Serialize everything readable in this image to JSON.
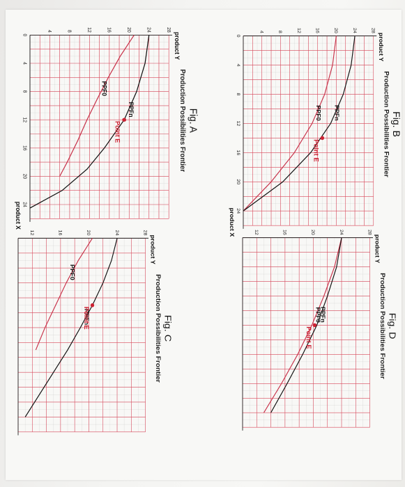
{
  "colors": {
    "grid_red": "#d9475a",
    "grid_gray": "#9a9a9a",
    "curve_black": "#111111",
    "curve_red": "#c8324a",
    "point": "#cc2233"
  },
  "chart_data": [
    {
      "type": "line",
      "figure_label": "Fig. A",
      "title": "Production Possibilities Frontier",
      "xlabel": "product X",
      "ylabel": "product Y",
      "xlim": [
        0,
        26
      ],
      "ylim": [
        0,
        28
      ],
      "x_ticks": [
        0,
        4,
        8,
        12,
        16,
        20,
        24
      ],
      "y_ticks": [
        4,
        8,
        12,
        16,
        20,
        24,
        28
      ],
      "series": [
        {
          "name": "PPF0",
          "color": "red",
          "x": [
            0,
            3,
            6,
            9,
            12,
            15,
            18,
            20
          ],
          "y": [
            21,
            18.2,
            15.8,
            13.6,
            11.5,
            9.6,
            7.5,
            6
          ]
        },
        {
          "name": "PPFn",
          "color": "black",
          "x": [
            0,
            4,
            8,
            12,
            16,
            19,
            22,
            24.5
          ],
          "y": [
            24,
            23.2,
            21.5,
            19,
            15,
            11.5,
            6.5,
            0
          ]
        }
      ],
      "points": [
        {
          "label": "Point E",
          "x": 12,
          "y": 19
        }
      ]
    },
    {
      "type": "line",
      "figure_label": "Fig. B",
      "title": "Production Possibilities Frontier",
      "xlabel": "product X",
      "ylabel": "product Y",
      "xlim": [
        0,
        26
      ],
      "ylim": [
        0,
        28
      ],
      "x_ticks": [
        0,
        4,
        8,
        12,
        16,
        20,
        24
      ],
      "y_ticks": [
        4,
        8,
        12,
        16,
        20,
        24,
        28
      ],
      "series": [
        {
          "name": "PPF0",
          "color": "red",
          "x": [
            0,
            4,
            8,
            12,
            16,
            20,
            24
          ],
          "y": [
            20,
            19.2,
            17.5,
            14.8,
            11,
            6,
            0
          ]
        },
        {
          "name": "PPFn",
          "color": "black",
          "x": [
            0,
            4,
            8,
            12,
            16,
            20,
            24
          ],
          "y": [
            24,
            23.2,
            21.5,
            18.8,
            14.5,
            8.5,
            0
          ]
        }
      ],
      "points": [
        {
          "label": "Point E",
          "x": 14,
          "y": 17
        }
      ]
    },
    {
      "type": "line",
      "figure_label": "Fig. C",
      "title": "Production Possibilities Frontier",
      "xlabel": "",
      "ylabel": "product Y",
      "xlim": [
        0,
        26
      ],
      "ylim": [
        10,
        28
      ],
      "x_ticks": [],
      "y_ticks": [
        12,
        16,
        20,
        24,
        28
      ],
      "series": [
        {
          "name": "PPF0",
          "color": "red",
          "x": [
            0,
            3,
            6,
            9,
            12,
            15
          ],
          "y": [
            20.5,
            18.5,
            16.8,
            15.3,
            13.8,
            12.5
          ]
        },
        {
          "name": "PPFn",
          "color": "black",
          "x": [
            0,
            3,
            6,
            9,
            12,
            15,
            18,
            21,
            24
          ],
          "y": [
            24,
            23.2,
            22,
            20.5,
            18.8,
            17,
            15,
            13,
            11
          ]
        }
      ],
      "points": [
        {
          "label": "Point E",
          "x": 9,
          "y": 20.5
        }
      ]
    },
    {
      "type": "line",
      "figure_label": "Fig. D",
      "title": "Production Possibilities Frontier",
      "xlabel": "",
      "ylabel": "product Y",
      "xlim": [
        0,
        26
      ],
      "ylim": [
        10,
        28
      ],
      "x_ticks": [],
      "y_ticks": [
        12,
        16,
        20,
        24,
        28
      ],
      "series": [
        {
          "name": "PPF0",
          "color": "red",
          "x": [
            0,
            4,
            8,
            12,
            16,
            20,
            24
          ],
          "y": [
            24,
            23,
            21.5,
            19.8,
            17.8,
            15.5,
            13
          ]
        },
        {
          "name": "PPFn",
          "color": "black",
          "x": [
            0,
            4,
            8,
            12,
            16,
            20,
            24
          ],
          "y": [
            24,
            23.3,
            22,
            20.5,
            18.5,
            16.3,
            14
          ]
        }
      ],
      "points": [
        {
          "label": "Point E",
          "x": 12,
          "y": 20.2
        }
      ]
    }
  ]
}
